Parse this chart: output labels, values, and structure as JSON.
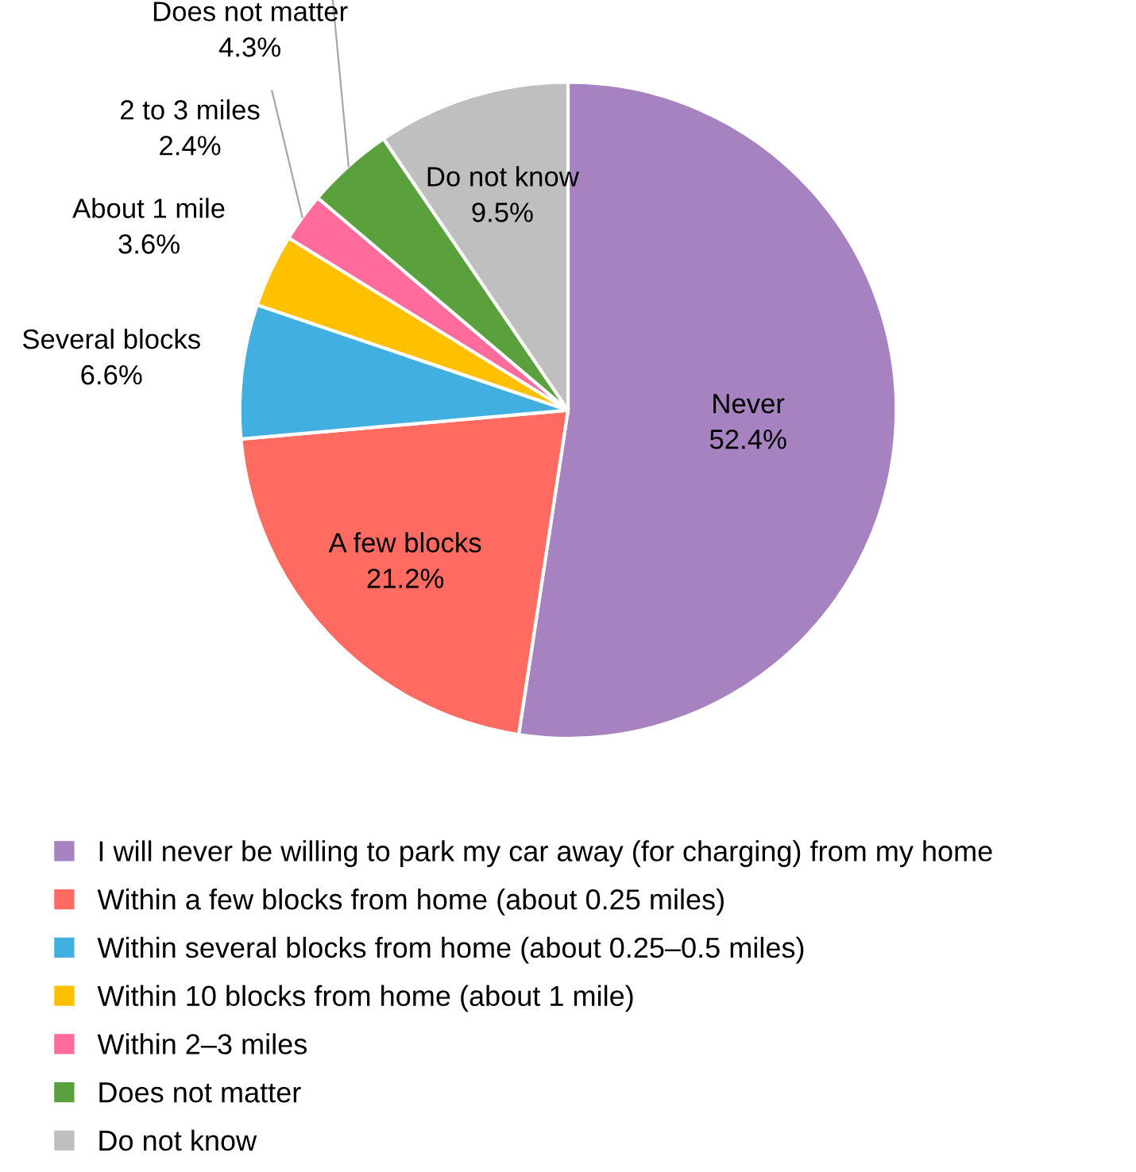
{
  "chart_data": {
    "type": "pie",
    "categories": [
      "I will never be willing to park my car away (for charging) from my home",
      "Within a few blocks from home (about 0.25 miles)",
      "Within several blocks from home (about 0.25–0.5 miles)",
      "Within 10 blocks from home (about 1 mile)",
      "Within 2–3 miles",
      "Does not matter",
      "Do not know"
    ],
    "values": [
      52.4,
      21.2,
      6.6,
      3.6,
      2.4,
      4.3,
      9.5
    ],
    "colors": [
      "#a682c0",
      "#ff6b61",
      "#41b0e0",
      "#ffc000",
      "#ff6b9a",
      "#5aa03c",
      "#bfbfbf"
    ],
    "value_labels": [
      "Never\n52.4%",
      "A few blocks\n21.2%",
      "Several blocks\n6.6%",
      "About 1 mile\n3.6%",
      "2 to 3 miles\n2.4%",
      "Does not matter\n4.3%",
      "Do not know\n9.5%"
    ],
    "legend": "bottom"
  }
}
